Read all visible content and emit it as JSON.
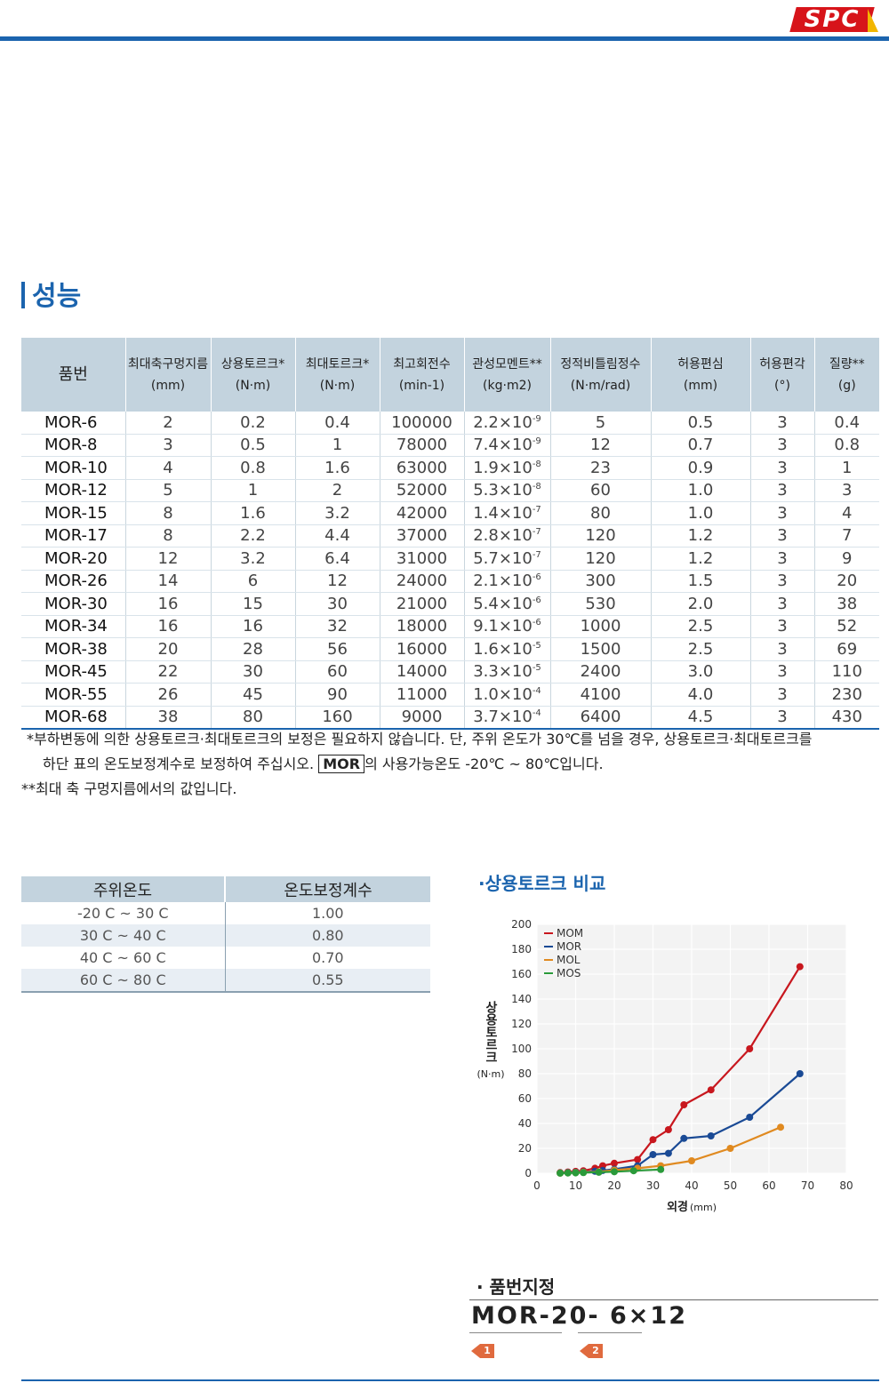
{
  "logo": {
    "text": "SPC"
  },
  "section_title": "성능",
  "spec_table": {
    "headers": [
      {
        "name": "품번",
        "unit": ""
      },
      {
        "name": "최대축구멍지름",
        "unit": "(mm)"
      },
      {
        "name": "상용토르크*",
        "unit": "(N·m)"
      },
      {
        "name": "최대토르크*",
        "unit": "(N·m)"
      },
      {
        "name": "최고회전수",
        "unit": "(min-1)"
      },
      {
        "name": "관성모멘트**",
        "unit": "(kg·m2)"
      },
      {
        "name": "정적비틀림정수",
        "unit": "(N·m/rad)"
      },
      {
        "name": "허용편심",
        "unit": "(mm)"
      },
      {
        "name": "허용편각",
        "unit": "(°)"
      },
      {
        "name": "질량**",
        "unit": "(g)"
      }
    ],
    "rows": [
      {
        "pn": "MOR-6",
        "bore": "2",
        "rated": "0.2",
        "max": "0.4",
        "rpm": "100000",
        "inertia_m": "2.2",
        "inertia_e": "-9",
        "stiff": "5",
        "ecc": "0.5",
        "ang": "3",
        "mass": "0.4"
      },
      {
        "pn": "MOR-8",
        "bore": "3",
        "rated": "0.5",
        "max": "1",
        "rpm": "78000",
        "inertia_m": "7.4",
        "inertia_e": "-9",
        "stiff": "12",
        "ecc": "0.7",
        "ang": "3",
        "mass": "0.8"
      },
      {
        "pn": "MOR-10",
        "bore": "4",
        "rated": "0.8",
        "max": "1.6",
        "rpm": "63000",
        "inertia_m": "1.9",
        "inertia_e": "-8",
        "stiff": "23",
        "ecc": "0.9",
        "ang": "3",
        "mass": "1"
      },
      {
        "pn": "MOR-12",
        "bore": "5",
        "rated": "1",
        "max": "2",
        "rpm": "52000",
        "inertia_m": "5.3",
        "inertia_e": "-8",
        "stiff": "60",
        "ecc": "1.0",
        "ang": "3",
        "mass": "3"
      },
      {
        "pn": "MOR-15",
        "bore": "8",
        "rated": "1.6",
        "max": "3.2",
        "rpm": "42000",
        "inertia_m": "1.4",
        "inertia_e": "-7",
        "stiff": "80",
        "ecc": "1.0",
        "ang": "3",
        "mass": "4"
      },
      {
        "pn": "MOR-17",
        "bore": "8",
        "rated": "2.2",
        "max": "4.4",
        "rpm": "37000",
        "inertia_m": "2.8",
        "inertia_e": "-7",
        "stiff": "120",
        "ecc": "1.2",
        "ang": "3",
        "mass": "7"
      },
      {
        "pn": "MOR-20",
        "bore": "12",
        "rated": "3.2",
        "max": "6.4",
        "rpm": "31000",
        "inertia_m": "5.7",
        "inertia_e": "-7",
        "stiff": "120",
        "ecc": "1.2",
        "ang": "3",
        "mass": "9"
      },
      {
        "pn": "MOR-26",
        "bore": "14",
        "rated": "6",
        "max": "12",
        "rpm": "24000",
        "inertia_m": "2.1",
        "inertia_e": "-6",
        "stiff": "300",
        "ecc": "1.5",
        "ang": "3",
        "mass": "20"
      },
      {
        "pn": "MOR-30",
        "bore": "16",
        "rated": "15",
        "max": "30",
        "rpm": "21000",
        "inertia_m": "5.4",
        "inertia_e": "-6",
        "stiff": "530",
        "ecc": "2.0",
        "ang": "3",
        "mass": "38"
      },
      {
        "pn": "MOR-34",
        "bore": "16",
        "rated": "16",
        "max": "32",
        "rpm": "18000",
        "inertia_m": "9.1",
        "inertia_e": "-6",
        "stiff": "1000",
        "ecc": "2.5",
        "ang": "3",
        "mass": "52"
      },
      {
        "pn": "MOR-38",
        "bore": "20",
        "rated": "28",
        "max": "56",
        "rpm": "16000",
        "inertia_m": "1.6",
        "inertia_e": "-5",
        "stiff": "1500",
        "ecc": "2.5",
        "ang": "3",
        "mass": "69"
      },
      {
        "pn": "MOR-45",
        "bore": "22",
        "rated": "30",
        "max": "60",
        "rpm": "14000",
        "inertia_m": "3.3",
        "inertia_e": "-5",
        "stiff": "2400",
        "ecc": "3.0",
        "ang": "3",
        "mass": "110"
      },
      {
        "pn": "MOR-55",
        "bore": "26",
        "rated": "45",
        "max": "90",
        "rpm": "11000",
        "inertia_m": "1.0",
        "inertia_e": "-4",
        "stiff": "4100",
        "ecc": "4.0",
        "ang": "3",
        "mass": "230"
      },
      {
        "pn": "MOR-68",
        "bore": "38",
        "rated": "80",
        "max": "160",
        "rpm": "9000",
        "inertia_m": "3.7",
        "inertia_e": "-4",
        "stiff": "6400",
        "ecc": "4.5",
        "ang": "3",
        "mass": "430"
      }
    ]
  },
  "notes": {
    "line1": "*부하변동에 의한 상용토르크·최대토르크의 보정은 필요하지 않습니다. 단, 주위 온도가 30℃를 넘을 경우, 상용토르크·최대토르크를",
    "line2_pre": "하단 표의 온도보정계수로 보정하여 주십시오.",
    "line2_box": "MOR",
    "line2_post": "의 사용가능온도 -20℃ ~ 80℃입니다.",
    "line3": "**최대 축 구멍지름에서의 값입니다."
  },
  "temp_table": {
    "headers": [
      "주위온도",
      "온도보정계수"
    ],
    "rows": [
      {
        "range": "-20 C  ~  30 C",
        "factor": "1.00"
      },
      {
        "range": "30 C  ~  40 C",
        "factor": "0.80"
      },
      {
        "range": "40 C  ~  60 C",
        "factor": "0.70"
      },
      {
        "range": "60 C  ~  80 C",
        "factor": "0.55"
      }
    ]
  },
  "chart_title": "·상용토르크 비교",
  "chart_data": {
    "type": "line",
    "title": "상용토르크 비교",
    "xlabel": "외경",
    "xunit": "(mm)",
    "ylabel": "상용토르크",
    "yunit": "(N·m)",
    "xlim": [
      0,
      80
    ],
    "ylim": [
      0,
      200
    ],
    "xticks": [
      0,
      10,
      20,
      30,
      40,
      50,
      60,
      70,
      80
    ],
    "yticks": [
      0,
      20,
      40,
      60,
      80,
      100,
      120,
      140,
      160,
      180,
      200
    ],
    "grid": true,
    "legend": "top-left",
    "series": [
      {
        "name": "MOM",
        "color": "#c8171e",
        "x": [
          6,
          8,
          10,
          12,
          15,
          17,
          20,
          26,
          30,
          34,
          38,
          45,
          55,
          68
        ],
        "y": [
          0.5,
          1,
          1.5,
          2,
          4,
          6,
          8,
          11,
          27,
          35,
          55,
          67,
          100,
          166
        ]
      },
      {
        "name": "MOR",
        "color": "#1a4a95",
        "x": [
          6,
          8,
          10,
          12,
          15,
          17,
          20,
          26,
          30,
          34,
          38,
          45,
          55,
          68
        ],
        "y": [
          0.2,
          0.5,
          0.8,
          1,
          1.6,
          2.2,
          3.2,
          6,
          15,
          16,
          28,
          30,
          45,
          80
        ]
      },
      {
        "name": "MOL",
        "color": "#e08a20",
        "x": [
          6,
          8,
          10,
          12,
          16,
          20,
          26,
          32,
          40,
          50,
          63
        ],
        "y": [
          0.1,
          0.3,
          0.5,
          0.8,
          1.2,
          2.5,
          4,
          6,
          10,
          20,
          37
        ]
      },
      {
        "name": "MOS",
        "color": "#2a9a3a",
        "x": [
          6,
          8,
          10,
          12,
          16,
          20,
          25,
          32
        ],
        "y": [
          0.1,
          0.2,
          0.3,
          0.5,
          0.8,
          1.2,
          2,
          3
        ]
      }
    ]
  },
  "part_number": {
    "title": "·  품번지정",
    "code": "MOR-20- 6×12",
    "markers": [
      "1",
      "2"
    ]
  }
}
